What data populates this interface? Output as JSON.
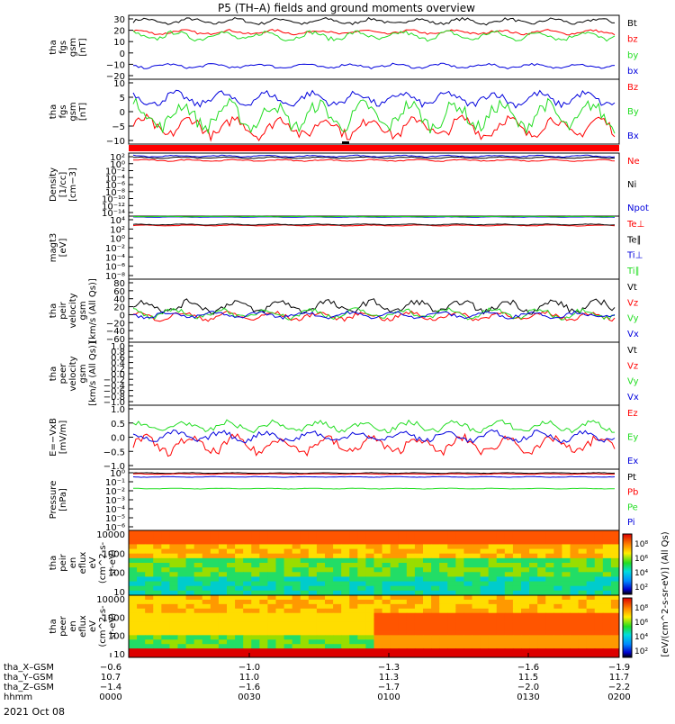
{
  "title": "P5 (TH–A) fields and ground moments overview",
  "colors": {
    "black": "#000000",
    "red": "#ff0000",
    "green": "#22dd22",
    "blue": "#0000dd",
    "cyan": "#00cccc",
    "bar": "#ff0000"
  },
  "chart_data": [
    {
      "type": "line",
      "panel": "fgs_gsm",
      "ylabel": [
        "tha",
        "fgs",
        "gsm",
        "[nT]"
      ],
      "yticks": [
        "30",
        "20",
        "10",
        "0",
        "−10",
        "−20"
      ],
      "ylim": [
        -20,
        33
      ],
      "series": [
        {
          "name": "Bt",
          "color": "black",
          "mean": 28,
          "amp": 2
        },
        {
          "name": "bz",
          "color": "red",
          "mean": 19,
          "amp": 1.5
        },
        {
          "name": "by",
          "color": "green",
          "mean": 16,
          "amp": 3
        },
        {
          "name": "bx",
          "color": "blue",
          "mean": -9,
          "amp": 1.5
        }
      ]
    },
    {
      "type": "line",
      "panel": "fgs_gsm_detail",
      "ylabel": [
        "tha",
        "fgs",
        "gsm",
        "[nT]"
      ],
      "yticks": [
        "10",
        "5",
        "0",
        "−5",
        "−10"
      ],
      "ylim": [
        -13,
        10
      ],
      "series": [
        {
          "name": "Bz",
          "color": "red",
          "mean": -7,
          "amp": 3
        },
        {
          "name": "By",
          "color": "green",
          "mean": -3,
          "amp": 4
        },
        {
          "name": "Bx",
          "color": "blue",
          "mean": 3,
          "amp": 2
        }
      ]
    },
    {
      "type": "line",
      "panel": "density",
      "ylabel": [
        "Density",
        "[1/cc]",
        "[cm−3]"
      ],
      "yticks": [
        "10²",
        "10⁰",
        "10⁻²",
        "10⁻⁴",
        "10⁻⁶",
        "10⁻⁸",
        "10⁻¹⁰",
        "10⁻¹²",
        "10⁻¹⁴"
      ],
      "ylim": [
        -14,
        2.4
      ],
      "log": true,
      "series": [
        {
          "name": "Ne",
          "color": "red",
          "mean": 0.5,
          "amp": 0.6
        },
        {
          "name": "Ni",
          "color": "black",
          "mean": 1.2,
          "amp": 0.5
        },
        {
          "name": "Npot",
          "color": "blue",
          "mean": 1.6,
          "amp": 0.6
        }
      ]
    },
    {
      "type": "line",
      "panel": "temperature",
      "ylabel": [
        "magt3",
        "[eV]"
      ],
      "yticks": [
        "10⁴",
        "10²",
        "10⁰",
        "10⁻²",
        "10⁻⁴",
        "10⁻⁶",
        "10⁻⁸"
      ],
      "ylim": [
        -9,
        4.5
      ],
      "log": true,
      "series": [
        {
          "name": "Te⊥",
          "color": "red",
          "mean": 2.5,
          "amp": 0.3
        },
        {
          "name": "Te∥",
          "color": "black",
          "mean": 2.7,
          "amp": 0.3
        },
        {
          "name": "Ti⊥",
          "color": "blue",
          "mean": 4.3,
          "amp": 0.1
        },
        {
          "name": "Ti∥",
          "color": "green",
          "mean": 4.4,
          "amp": 0.1
        }
      ]
    },
    {
      "type": "line",
      "panel": "peir_velocity",
      "ylabel": [
        "tha",
        "peir",
        "velocity",
        "gsm",
        "[km/s (All Qs)]"
      ],
      "yticks": [
        "80",
        "60",
        "40",
        "20",
        "0",
        "−20",
        "−40",
        "−60"
      ],
      "ylim": [
        -60,
        90
      ],
      "series": [
        {
          "name": "Vt",
          "color": "black",
          "mean": 25,
          "amp": 12
        },
        {
          "name": "Vz",
          "color": "red",
          "mean": 2,
          "amp": 8
        },
        {
          "name": "Vy",
          "color": "green",
          "mean": 8,
          "amp": 10
        },
        {
          "name": "Vx",
          "color": "blue",
          "mean": 5,
          "amp": 6
        }
      ]
    },
    {
      "type": "line",
      "panel": "peer_velocity",
      "ylabel": [
        "tha",
        "peer",
        "velocity",
        "gsm",
        "[km/s (All Qs)]"
      ],
      "yticks": [
        "1.0",
        "0.8",
        "0.6",
        "0.4",
        "0.2",
        "0.0",
        "−0.2",
        "−0.4",
        "−0.6",
        "−0.8",
        "−1.0"
      ],
      "ylim": [
        -1,
        1
      ],
      "series": [
        {
          "name": "Vt",
          "color": "black"
        },
        {
          "name": "Vz",
          "color": "red"
        },
        {
          "name": "Vy",
          "color": "green"
        },
        {
          "name": "Vx",
          "color": "blue"
        }
      ]
    },
    {
      "type": "line",
      "panel": "efield",
      "ylabel": [
        "E=−VxB",
        "[mV/m]"
      ],
      "yticks": [
        "1.0",
        "0.5",
        "0.0",
        "−0.5",
        "−1.0"
      ],
      "ylim": [
        -1.05,
        1.2
      ],
      "series": [
        {
          "name": "Ez",
          "color": "red",
          "mean": -0.2,
          "amp": 0.25
        },
        {
          "name": "Ey",
          "color": "green",
          "mean": 0.45,
          "amp": 0.15
        },
        {
          "name": "Ex",
          "color": "blue",
          "mean": 0.1,
          "amp": 0.15
        }
      ]
    },
    {
      "type": "line",
      "panel": "pressure",
      "ylabel": [
        "Pressure",
        "[nPa]"
      ],
      "yticks": [
        "10⁰",
        "10⁻¹",
        "10⁻²",
        "10⁻³",
        "10⁻⁴",
        "10⁻⁵",
        "10⁻⁶"
      ],
      "ylim": [
        -6,
        0.3
      ],
      "log": true,
      "series": [
        {
          "name": "Pt",
          "color": "black",
          "mean": -0.1
        },
        {
          "name": "Pb",
          "color": "red",
          "mean": -0.2
        },
        {
          "name": "Pe",
          "color": "green",
          "mean": -1.7
        },
        {
          "name": "Pi",
          "color": "blue",
          "mean": -0.5
        }
      ]
    },
    {
      "type": "heatmap",
      "panel": "peir_en_eflux",
      "ylabel": [
        "tha",
        "peir",
        "en",
        "eflux",
        "eV",
        "(cm^2-s-",
        "sr-eV)"
      ],
      "yticks": [
        "10000",
        "1000",
        "100",
        "10"
      ]
    },
    {
      "type": "heatmap",
      "panel": "peer_en_eflux",
      "ylabel": [
        "tha",
        "peer",
        "en",
        "eflux",
        "eV",
        "(cm^2-s-",
        "sr-eV)"
      ],
      "yticks": [
        "10000",
        "1000",
        "100",
        "10"
      ]
    }
  ],
  "colorbar": {
    "ticks": [
      "10⁸",
      "10⁶",
      "10⁴",
      "10²"
    ],
    "label": "[eV/(cm^2-s-sr-eV)] (All Qs)"
  },
  "xaxis": {
    "rows": [
      {
        "label": "tha_X–GSM",
        "values": [
          "−0.6",
          "−1.0",
          "−1.3",
          "−1.6",
          "−1.9"
        ]
      },
      {
        "label": "tha_Y–GSM",
        "values": [
          "10.7",
          "11.0",
          "11.3",
          "11.5",
          "11.7"
        ]
      },
      {
        "label": "tha_Z–GSM",
        "values": [
          "−1.4",
          "−1.6",
          "−1.7",
          "−2.0",
          "−2.2"
        ]
      },
      {
        "label": "hhmm",
        "values": [
          "0000",
          "0030",
          "0100",
          "0130",
          "0200"
        ]
      }
    ],
    "date": "2021 Oct 08"
  }
}
